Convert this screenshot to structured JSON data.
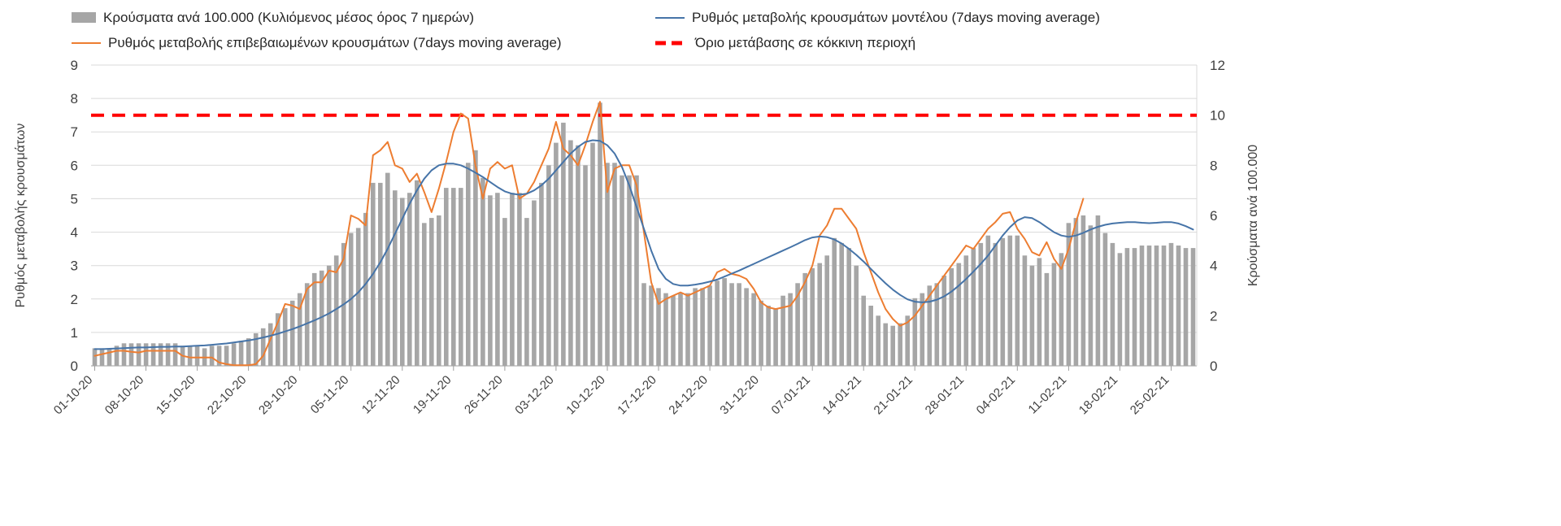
{
  "legend": {
    "bars_label": "Κρούσματα ανά 100.000 (Κυλιόμενος μέσος όρος 7 ημερών)",
    "model_label": "Ρυθμός μεταβολής κρουσμάτων μοντέλου (7days moving average)",
    "confirmed_label": "Ρυθμός μεταβολής επιβεβαιωμένων κρουσμάτων (7days moving average)",
    "threshold_label": "Όριο μετάβασης σε κόκκινη περιοχή"
  },
  "colors": {
    "bars": "#a6a6a6",
    "model_line": "#4674a8",
    "confirmed_line": "#ed7d31",
    "threshold_line": "#ff0000",
    "grid": "#d9d9d9",
    "axis_line": "#9e9e9e",
    "axis_text": "#404040"
  },
  "chart_data": {
    "type": "combo",
    "x_start_date": "01-10-20",
    "x_tick_step_days": 7,
    "x_tick_labels": [
      "01-10-20",
      "08-10-20",
      "15-10-20",
      "22-10-20",
      "29-10-20",
      "05-11-20",
      "12-11-20",
      "19-11-20",
      "26-11-20",
      "03-12-20",
      "10-12-20",
      "17-12-20",
      "24-12-20",
      "31-12-20",
      "07-01-21",
      "14-01-21",
      "21-01-21",
      "28-01-21",
      "04-02-21",
      "11-02-21",
      "18-02-21",
      "25-02-21"
    ],
    "left_axis": {
      "label": "Ρυθμός μεταβολής κρουσμάτων",
      "range": [
        0,
        9
      ],
      "ticks": [
        0,
        1,
        2,
        3,
        4,
        5,
        6,
        7,
        8,
        9
      ]
    },
    "right_axis": {
      "label": "Κρούσματα ανά 100.000",
      "range": [
        0,
        12
      ],
      "ticks": [
        0,
        2,
        4,
        6,
        8,
        10,
        12
      ]
    },
    "threshold": {
      "label": "Όριο μετάβασης σε κόκκινη περιοχή",
      "axis": "left",
      "value": 7.5
    },
    "grid": true,
    "legend_position": "top",
    "series": [
      {
        "id": "cases-bars",
        "name": "Κρούσματα ανά 100.000 (Κυλιόμενος μέσος όρος 7 ημερών)",
        "type": "bar",
        "axis": "right",
        "color": "#a6a6a6",
        "values": [
          0.7,
          0.7,
          0.7,
          0.8,
          0.9,
          0.9,
          0.9,
          0.9,
          0.9,
          0.9,
          0.9,
          0.9,
          0.8,
          0.8,
          0.8,
          0.7,
          0.8,
          0.8,
          0.8,
          0.9,
          1.0,
          1.1,
          1.3,
          1.5,
          1.7,
          2.1,
          2.3,
          2.6,
          2.9,
          3.3,
          3.7,
          3.8,
          4.0,
          4.4,
          4.9,
          5.3,
          5.5,
          6.1,
          7.3,
          7.3,
          7.7,
          7.0,
          6.7,
          6.9,
          7.4,
          5.7,
          5.9,
          6.0,
          7.1,
          7.1,
          7.1,
          8.1,
          8.6,
          7.5,
          6.8,
          6.9,
          5.9,
          6.9,
          6.9,
          5.9,
          6.6,
          7.3,
          8.0,
          8.9,
          9.7,
          9.0,
          8.8,
          8.0,
          8.9,
          10.5,
          8.1,
          8.1,
          7.6,
          7.6,
          7.6,
          3.3,
          3.2,
          3.1,
          2.9,
          2.8,
          2.9,
          2.9,
          3.1,
          3.1,
          3.2,
          3.4,
          3.5,
          3.3,
          3.3,
          3.1,
          2.9,
          2.6,
          2.4,
          2.3,
          2.8,
          2.9,
          3.3,
          3.7,
          3.9,
          4.1,
          4.4,
          5.1,
          4.9,
          4.7,
          4.0,
          2.8,
          2.4,
          2.0,
          1.7,
          1.6,
          1.7,
          2.0,
          2.7,
          2.9,
          3.2,
          3.3,
          3.6,
          3.9,
          4.1,
          4.4,
          4.7,
          4.9,
          5.2,
          4.9,
          5.1,
          5.2,
          5.2,
          4.4,
          4.0,
          4.3,
          3.7,
          4.1,
          4.5,
          5.7,
          5.9,
          6.0,
          5.6,
          6.0,
          5.3,
          4.9,
          4.5,
          4.7,
          4.7,
          4.8,
          4.8,
          4.8,
          4.8,
          4.9,
          4.8,
          4.7,
          4.7
        ]
      },
      {
        "id": "confirmed-line",
        "name": "Ρυθμός μεταβολής επιβεβαιωμένων κρουσμάτων (7days moving average)",
        "type": "line",
        "axis": "left",
        "color": "#ed7d31",
        "values": [
          0.3,
          0.35,
          0.4,
          0.45,
          0.45,
          0.42,
          0.4,
          0.45,
          0.45,
          0.45,
          0.45,
          0.45,
          0.3,
          0.25,
          0.25,
          0.25,
          0.25,
          0.1,
          0.05,
          0.02,
          0.02,
          0.02,
          0.05,
          0.3,
          0.8,
          1.3,
          1.85,
          1.8,
          1.7,
          2.3,
          2.5,
          2.5,
          2.85,
          2.8,
          3.2,
          4.5,
          4.4,
          4.2,
          6.3,
          6.45,
          6.7,
          6.0,
          5.9,
          5.5,
          5.75,
          5.2,
          4.6,
          5.3,
          6.1,
          7.0,
          7.55,
          7.4,
          6.0,
          5.0,
          5.9,
          6.1,
          5.9,
          6.0,
          5.0,
          5.15,
          5.5,
          6.0,
          6.5,
          7.3,
          6.5,
          6.3,
          6.0,
          6.6,
          7.3,
          7.9,
          5.2,
          5.9,
          6.0,
          6.0,
          5.4,
          4.0,
          2.5,
          1.85,
          2.0,
          2.1,
          2.2,
          2.1,
          2.2,
          2.3,
          2.4,
          2.8,
          2.9,
          2.75,
          2.7,
          2.6,
          2.3,
          1.9,
          1.75,
          1.7,
          1.75,
          1.8,
          2.1,
          2.5,
          3.0,
          3.9,
          4.2,
          4.7,
          4.7,
          4.4,
          4.1,
          3.4,
          2.8,
          2.2,
          1.7,
          1.4,
          1.2,
          1.3,
          1.5,
          1.8,
          2.1,
          2.4,
          2.7,
          3.0,
          3.3,
          3.6,
          3.5,
          3.8,
          4.1,
          4.3,
          4.55,
          4.6,
          4.1,
          3.8,
          3.4,
          3.3,
          3.7,
          3.2,
          2.9,
          3.5,
          4.3,
          5.0,
          null,
          null,
          null,
          null,
          null,
          null,
          null,
          null,
          null,
          null,
          null,
          null,
          null,
          null,
          null
        ]
      },
      {
        "id": "model-line",
        "name": "Ρυθμός μεταβολής κρουσμάτων μοντέλου (7days moving average)",
        "type": "line",
        "axis": "left",
        "color": "#4674a8",
        "values": [
          0.5,
          0.5,
          0.51,
          0.52,
          0.53,
          0.54,
          0.55,
          0.55,
          0.56,
          0.57,
          0.57,
          0.58,
          0.58,
          0.59,
          0.6,
          0.61,
          0.63,
          0.65,
          0.67,
          0.7,
          0.73,
          0.76,
          0.8,
          0.85,
          0.9,
          0.96,
          1.03,
          1.1,
          1.18,
          1.27,
          1.36,
          1.46,
          1.57,
          1.7,
          1.84,
          2.0,
          2.2,
          2.45,
          2.75,
          3.1,
          3.5,
          3.95,
          4.4,
          4.85,
          5.25,
          5.6,
          5.85,
          6.0,
          6.05,
          6.05,
          6.0,
          5.9,
          5.78,
          5.65,
          5.5,
          5.35,
          5.22,
          5.15,
          5.12,
          5.15,
          5.25,
          5.4,
          5.6,
          5.85,
          6.1,
          6.35,
          6.55,
          6.7,
          6.75,
          6.73,
          6.6,
          6.35,
          5.95,
          5.4,
          4.75,
          4.1,
          3.45,
          2.9,
          2.6,
          2.45,
          2.4,
          2.4,
          2.43,
          2.47,
          2.52,
          2.58,
          2.67,
          2.76,
          2.85,
          2.95,
          3.05,
          3.15,
          3.25,
          3.35,
          3.45,
          3.55,
          3.65,
          3.76,
          3.84,
          3.87,
          3.85,
          3.78,
          3.66,
          3.5,
          3.32,
          3.12,
          2.9,
          2.68,
          2.47,
          2.28,
          2.12,
          1.99,
          1.92,
          1.9,
          1.92,
          1.98,
          2.08,
          2.22,
          2.4,
          2.6,
          2.82,
          3.05,
          3.3,
          3.6,
          3.9,
          4.15,
          4.35,
          4.45,
          4.42,
          4.3,
          4.15,
          4.0,
          3.9,
          3.86,
          3.9,
          3.98,
          4.08,
          4.16,
          4.22,
          4.26,
          4.28,
          4.3,
          4.3,
          4.28,
          4.27,
          4.28,
          4.3,
          4.3,
          4.26,
          4.18,
          4.08
        ]
      }
    ]
  }
}
